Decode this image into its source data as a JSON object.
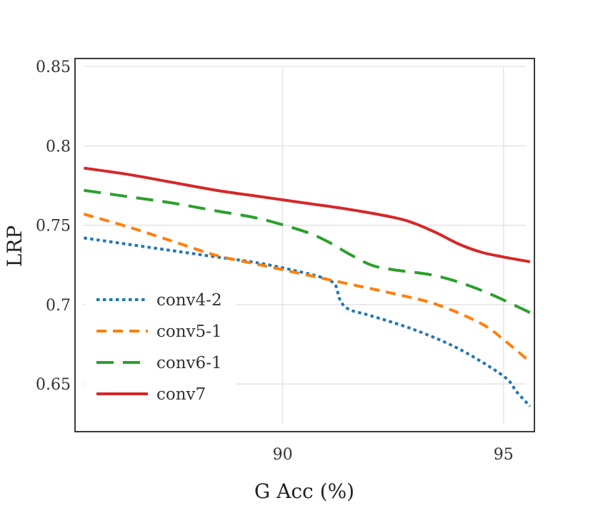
{
  "chart_data": {
    "type": "line",
    "title": "",
    "xlabel": "G Acc (%)",
    "ylabel": "LRP",
    "xlim": [
      85.3,
      95.7
    ],
    "ylim": [
      0.62,
      0.855
    ],
    "xticks": [
      {
        "value": 90,
        "label": "90"
      },
      {
        "value": 95,
        "label": "95"
      }
    ],
    "yticks": [
      {
        "value": 0.65,
        "label": "0.65"
      },
      {
        "value": 0.7,
        "label": "0.7"
      },
      {
        "value": 0.75,
        "label": "0.75"
      },
      {
        "value": 0.8,
        "label": "0.8"
      },
      {
        "value": 0.85,
        "label": "0.85"
      }
    ],
    "grid": true,
    "legend_position": "lower-left",
    "series": [
      {
        "name": "conv4-2",
        "color": "#1f77b4",
        "style": "dotted",
        "x": [
          85.5,
          86.5,
          87.5,
          88.5,
          89.5,
          90.5,
          91.0,
          91.2,
          91.3,
          91.5,
          92.0,
          93.0,
          94.0,
          95.0,
          95.3,
          95.6
        ],
        "y": [
          0.742,
          0.738,
          0.734,
          0.73,
          0.726,
          0.72,
          0.716,
          0.712,
          0.703,
          0.697,
          0.693,
          0.684,
          0.672,
          0.655,
          0.645,
          0.636
        ]
      },
      {
        "name": "conv5-1",
        "color": "#ff7f0e",
        "style": "dashed",
        "x": [
          85.5,
          86.5,
          87.5,
          88.5,
          89.5,
          90.5,
          91.5,
          92.5,
          93.5,
          94.5,
          95.0,
          95.6
        ],
        "y": [
          0.757,
          0.749,
          0.74,
          0.731,
          0.725,
          0.719,
          0.713,
          0.707,
          0.7,
          0.688,
          0.678,
          0.664
        ]
      },
      {
        "name": "conv6-1",
        "color": "#2ca02c",
        "style": "longdash",
        "x": [
          85.5,
          86.5,
          87.5,
          88.5,
          89.5,
          90.5,
          91.0,
          91.5,
          92.0,
          92.5,
          93.5,
          94.5,
          95.6
        ],
        "y": [
          0.772,
          0.768,
          0.764,
          0.759,
          0.754,
          0.746,
          0.74,
          0.732,
          0.725,
          0.722,
          0.718,
          0.709,
          0.695
        ]
      },
      {
        "name": "conv7",
        "color": "#d62728",
        "style": "solid",
        "x": [
          85.5,
          86.5,
          87.5,
          88.5,
          89.5,
          90.5,
          91.5,
          92.5,
          93.0,
          93.5,
          94.0,
          94.5,
          95.0,
          95.6
        ],
        "y": [
          0.786,
          0.782,
          0.777,
          0.772,
          0.768,
          0.764,
          0.76,
          0.755,
          0.751,
          0.745,
          0.738,
          0.733,
          0.73,
          0.727
        ]
      }
    ]
  }
}
